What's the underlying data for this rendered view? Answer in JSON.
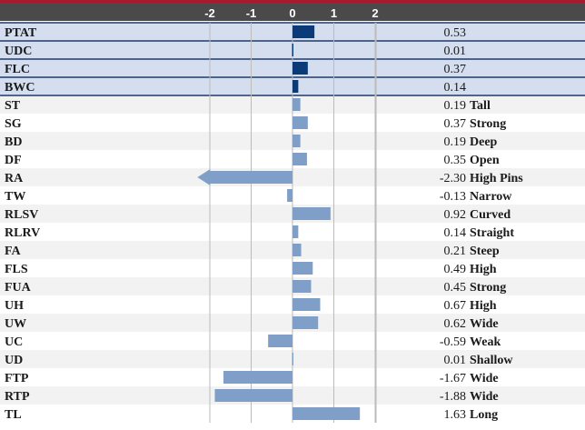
{
  "chart_data": {
    "type": "bar",
    "orientation": "horizontal",
    "title": "",
    "xlabel": "",
    "ylabel": "",
    "xlim": [
      -2.3,
      2
    ],
    "x_ticks": [
      -2,
      -1,
      0,
      1,
      2
    ],
    "grid": true,
    "colors": {
      "header_band": "#4a4a4a",
      "header_accent": "#a6192e",
      "highlight_bar": "#0b3a78",
      "normal_bar": "#7f9fc9",
      "highlight_row_bg": "#d4deee",
      "row_bg_a": "#f2f2f2",
      "row_bg_b": "#ffffff",
      "highlight_divider": "#1f3a6b",
      "gridline": "#bbbbbb"
    },
    "rows": [
      {
        "label": "PTAT",
        "value": 0.53,
        "value_text": "0.53",
        "desc": "",
        "highlight": true
      },
      {
        "label": "UDC",
        "value": 0.01,
        "value_text": "0.01",
        "desc": "",
        "highlight": true
      },
      {
        "label": "FLC",
        "value": 0.37,
        "value_text": "0.37",
        "desc": "",
        "highlight": true
      },
      {
        "label": "BWC",
        "value": 0.14,
        "value_text": "0.14",
        "desc": "",
        "highlight": true
      },
      {
        "label": "ST",
        "value": 0.19,
        "value_text": "0.19",
        "desc": "Tall",
        "highlight": false
      },
      {
        "label": "SG",
        "value": 0.37,
        "value_text": "0.37",
        "desc": "Strong",
        "highlight": false
      },
      {
        "label": "BD",
        "value": 0.19,
        "value_text": "0.19",
        "desc": "Deep",
        "highlight": false
      },
      {
        "label": "DF",
        "value": 0.35,
        "value_text": "0.35",
        "desc": "Open",
        "highlight": false
      },
      {
        "label": "RA",
        "value": -2.3,
        "value_text": "-2.30",
        "desc": "High Pins",
        "highlight": false,
        "arrow": true
      },
      {
        "label": "TW",
        "value": -0.13,
        "value_text": "-0.13",
        "desc": "Narrow",
        "highlight": false
      },
      {
        "label": "RLSV",
        "value": 0.92,
        "value_text": "0.92",
        "desc": "Curved",
        "highlight": false
      },
      {
        "label": "RLRV",
        "value": 0.14,
        "value_text": "0.14",
        "desc": "Straight",
        "highlight": false
      },
      {
        "label": "FA",
        "value": 0.21,
        "value_text": "0.21",
        "desc": "Steep",
        "highlight": false
      },
      {
        "label": "FLS",
        "value": 0.49,
        "value_text": "0.49",
        "desc": "High",
        "highlight": false
      },
      {
        "label": "FUA",
        "value": 0.45,
        "value_text": "0.45",
        "desc": "Strong",
        "highlight": false
      },
      {
        "label": "UH",
        "value": 0.67,
        "value_text": "0.67",
        "desc": "High",
        "highlight": false
      },
      {
        "label": "UW",
        "value": 0.62,
        "value_text": "0.62",
        "desc": "Wide",
        "highlight": false
      },
      {
        "label": "UC",
        "value": -0.59,
        "value_text": "-0.59",
        "desc": "Weak",
        "highlight": false
      },
      {
        "label": "UD",
        "value": 0.01,
        "value_text": "0.01",
        "desc": "Shallow",
        "highlight": false
      },
      {
        "label": "FTP",
        "value": -1.67,
        "value_text": "-1.67",
        "desc": "Wide",
        "highlight": false
      },
      {
        "label": "RTP",
        "value": -1.88,
        "value_text": "-1.88",
        "desc": "Wide",
        "highlight": false
      },
      {
        "label": "TL",
        "value": 1.63,
        "value_text": "1.63",
        "desc": "Long",
        "highlight": false
      }
    ]
  }
}
